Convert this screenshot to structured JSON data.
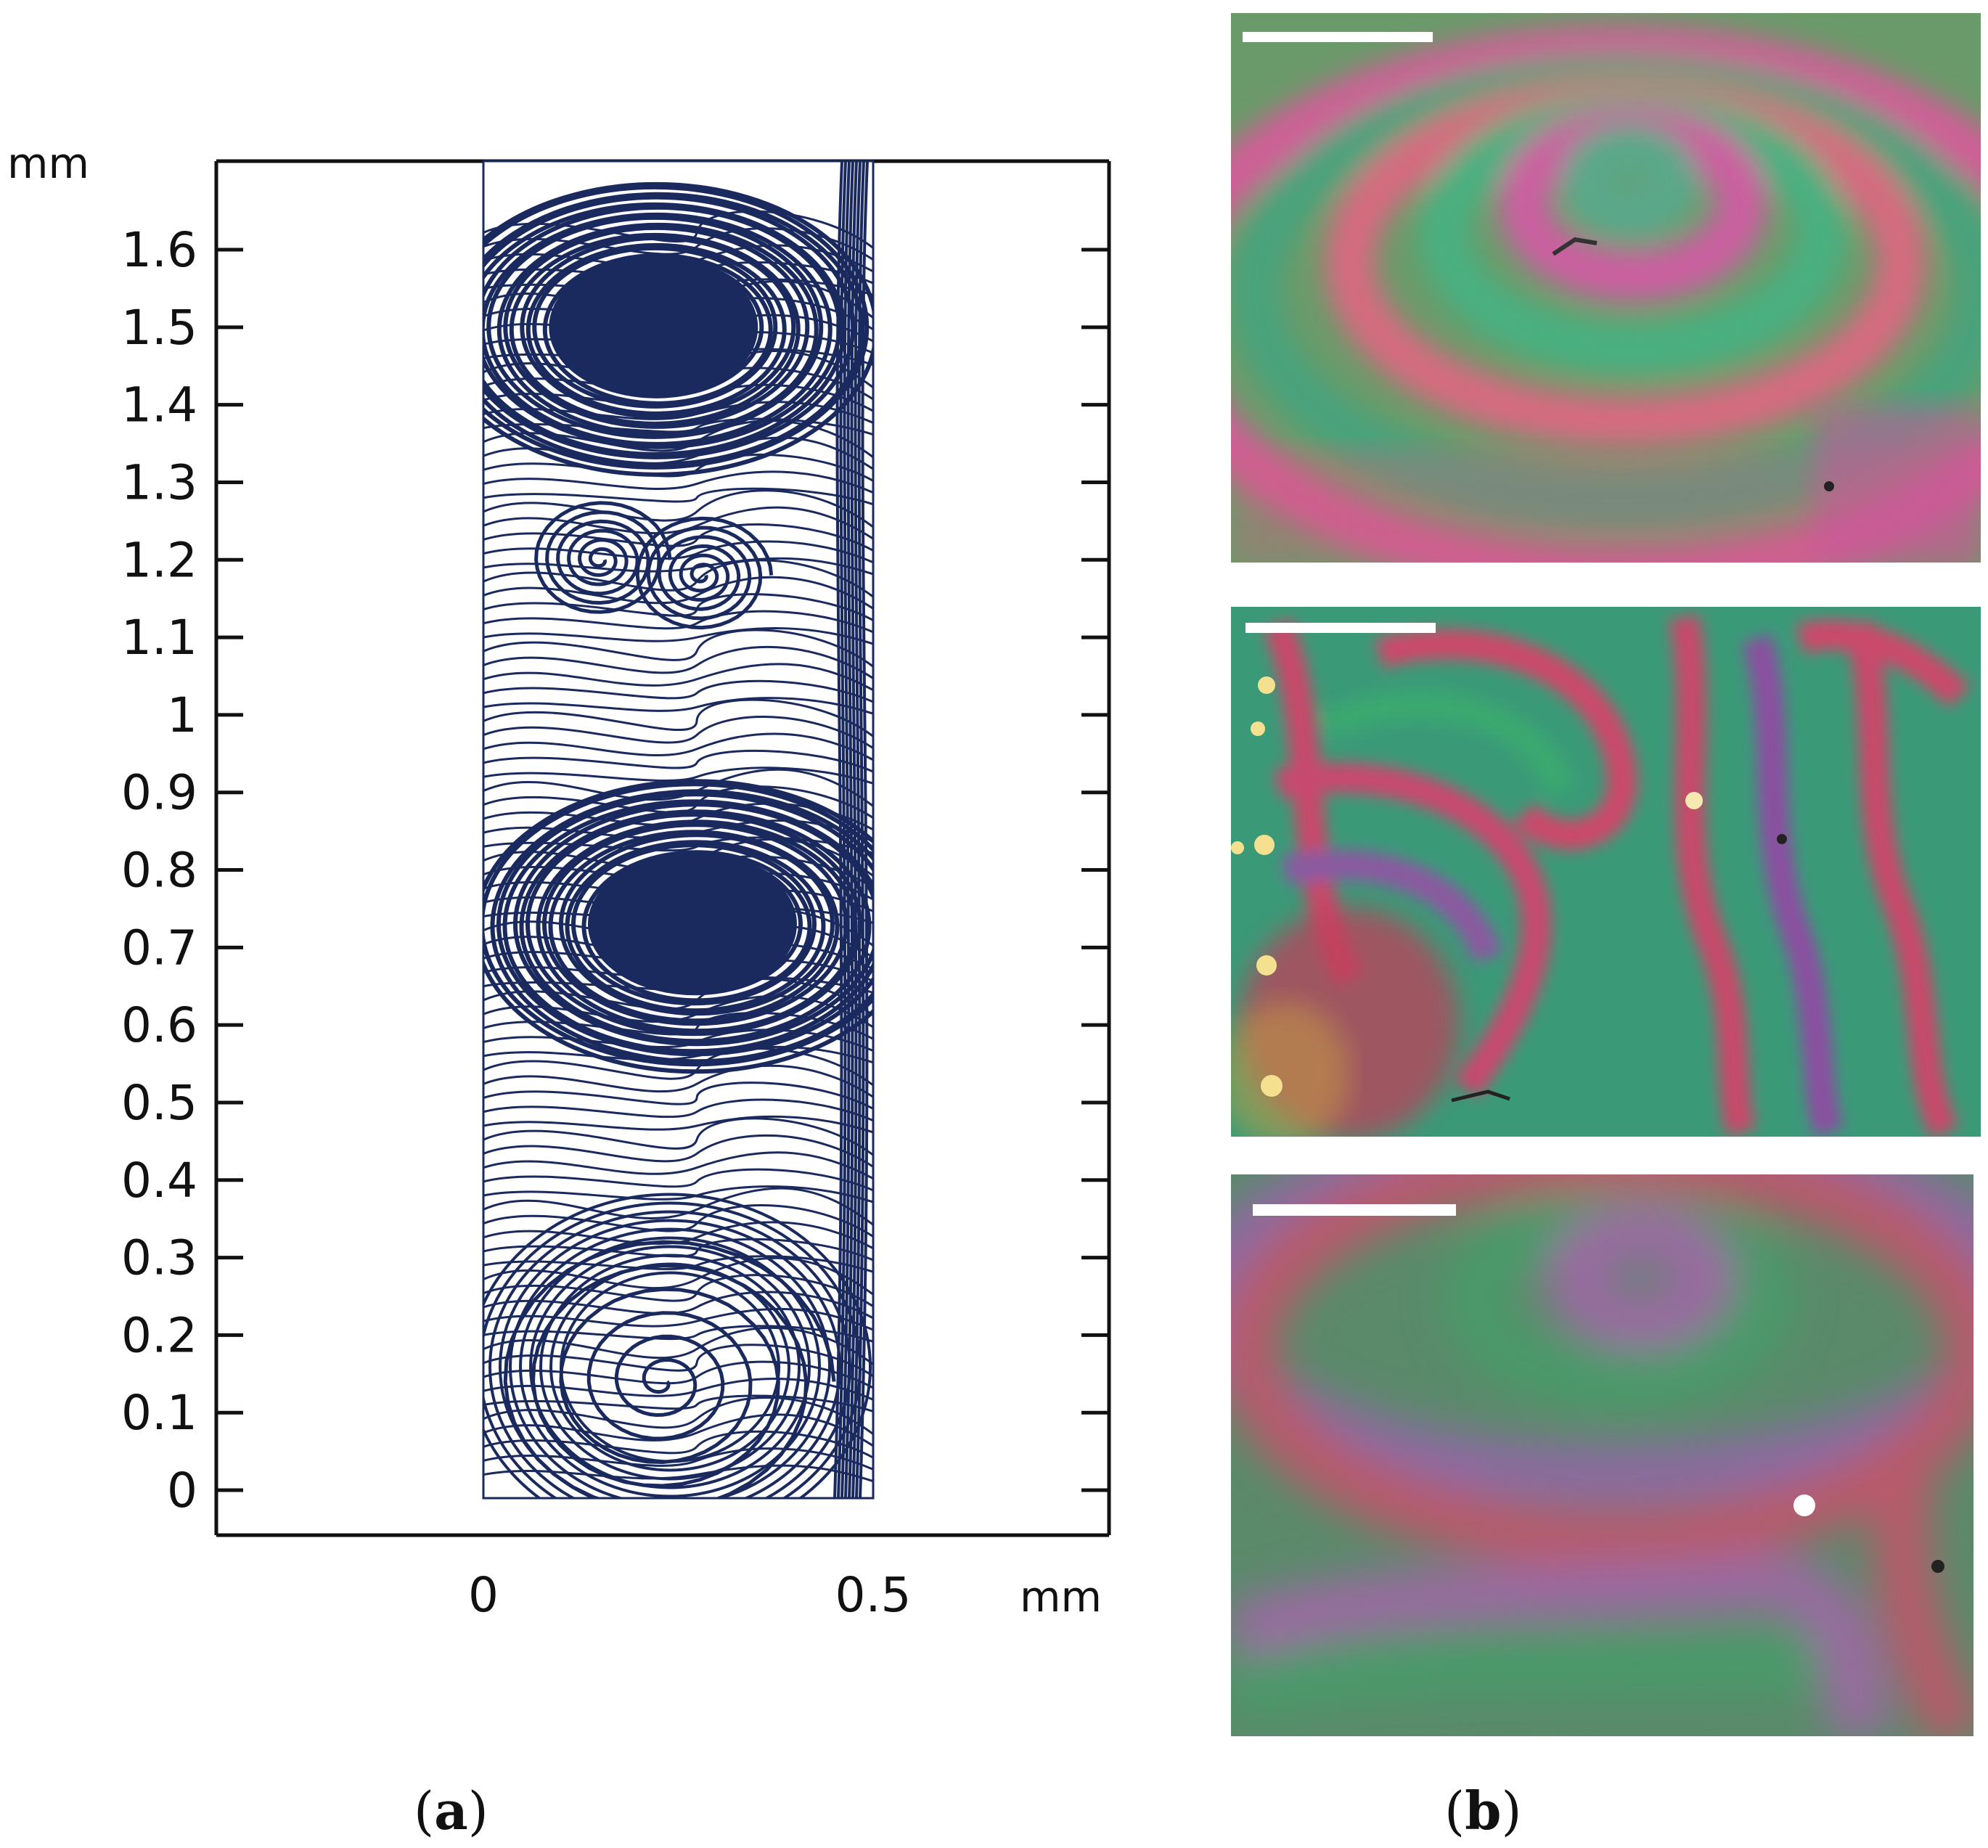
{
  "figure": {
    "panel_a": {
      "label_open": "(",
      "label_letter": "a",
      "label_close": ")",
      "y_unit": "mm",
      "x_unit": "mm",
      "x_ticks": [
        "0",
        "0.5"
      ],
      "x_tick_values": [
        0,
        0.5
      ],
      "y_ticks": [
        "0",
        "0.1",
        "0.2",
        "0.3",
        "0.4",
        "0.5",
        "0.6",
        "0.7",
        "0.8",
        "0.9",
        "1",
        "1.1",
        "1.2",
        "1.3",
        "1.4",
        "1.5",
        "1.6"
      ],
      "y_tick_values": [
        0,
        0.1,
        0.2,
        0.3,
        0.4,
        0.5,
        0.6,
        0.7,
        0.8,
        0.9,
        1.0,
        1.1,
        1.2,
        1.3,
        1.4,
        1.5,
        1.6
      ],
      "streamline_color": "#1a2a5e",
      "vortex_centers_mm": [
        {
          "x": 0.22,
          "y": 1.5,
          "kind": "dense"
        },
        {
          "x": 0.15,
          "y": 1.2,
          "kind": "spiral"
        },
        {
          "x": 0.28,
          "y": 1.18,
          "kind": "spiral"
        },
        {
          "x": 0.27,
          "y": 0.73,
          "kind": "dense"
        },
        {
          "x": 0.23,
          "y": 0.14,
          "kind": "spiral"
        }
      ]
    },
    "panel_b": {
      "label_open": "(",
      "label_letter": "b",
      "label_close": ")",
      "scale_bar_color": "#ffffff",
      "micrographs": [
        {
          "name": "top",
          "base_color": "#6a9a6a",
          "band_colors": [
            "#d85a9a",
            "#4caa7a",
            "#c87088"
          ]
        },
        {
          "name": "middle",
          "base_color": "#3a9a78",
          "band_colors": [
            "#cc4a6a",
            "#3aaa70",
            "#8a5aa0"
          ]
        },
        {
          "name": "bottom",
          "base_color": "#5a8a6a",
          "band_colors": [
            "#9a6aa0",
            "#4a9a6a",
            "#b85a6a"
          ]
        }
      ]
    }
  }
}
